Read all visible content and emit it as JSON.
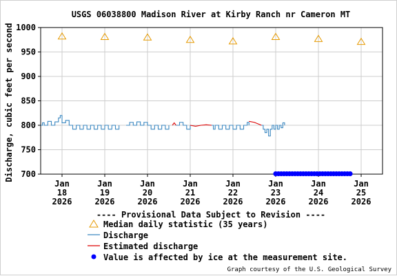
{
  "chart_data": {
    "type": "line",
    "title": "USGS 06038800 Madison River at Kirby Ranch nr Cameron MT",
    "ylabel": "Discharge, cubic feet per second",
    "ylim": [
      700,
      1000
    ],
    "yticks": [
      700,
      750,
      800,
      850,
      900,
      950,
      1000
    ],
    "x_range": [
      "2026-01-17T12:00",
      "2026-01-25T12:00"
    ],
    "xticks": [
      {
        "day": "Jan",
        "date": "18",
        "year": "2026"
      },
      {
        "day": "Jan",
        "date": "19",
        "year": "2026"
      },
      {
        "day": "Jan",
        "date": "20",
        "year": "2026"
      },
      {
        "day": "Jan",
        "date": "21",
        "year": "2026"
      },
      {
        "day": "Jan",
        "date": "22",
        "year": "2026"
      },
      {
        "day": "Jan",
        "date": "23",
        "year": "2026"
      },
      {
        "day": "Jan",
        "date": "24",
        "year": "2026"
      },
      {
        "day": "Jan",
        "date": "25",
        "year": "2026"
      }
    ],
    "grid": true,
    "provisional_notice": "---- Provisional Data Subject to Revision ----",
    "credit": "Graph courtesy of the U.S. Geological Survey",
    "legend": {
      "median": "Median daily statistic (35 years)",
      "discharge": "Discharge",
      "estimated": "Estimated discharge",
      "ice": "Value is affected by ice at the measurement site."
    },
    "colors": {
      "median": "#e69a00",
      "discharge": "#3a87c0",
      "estimated": "#dd0000",
      "ice": "#0000ff",
      "notice": "#dd0000",
      "grid": "#cccccc"
    },
    "series": [
      {
        "name": "Median daily statistic (35 years)",
        "marker": "triangle",
        "points": [
          {
            "x": "2026-01-18",
            "y": 982
          },
          {
            "x": "2026-01-19",
            "y": 981
          },
          {
            "x": "2026-01-20",
            "y": 980
          },
          {
            "x": "2026-01-21",
            "y": 975
          },
          {
            "x": "2026-01-22",
            "y": 972
          },
          {
            "x": "2026-01-23",
            "y": 981
          },
          {
            "x": "2026-01-24",
            "y": 977
          },
          {
            "x": "2026-01-25",
            "y": 971
          }
        ]
      },
      {
        "name": "Discharge",
        "points": [
          {
            "x": "2026-01-17T12:00",
            "y": 800
          },
          {
            "x": "2026-01-17T13:00",
            "y": 805
          },
          {
            "x": "2026-01-17T14:00",
            "y": 800
          },
          {
            "x": "2026-01-17T16:00",
            "y": 808
          },
          {
            "x": "2026-01-17T18:00",
            "y": 800
          },
          {
            "x": "2026-01-17T20:00",
            "y": 807
          },
          {
            "x": "2026-01-17T22:00",
            "y": 815
          },
          {
            "x": "2026-01-17T23:00",
            "y": 820
          },
          {
            "x": "2026-01-18T00:00",
            "y": 805
          },
          {
            "x": "2026-01-18T02:00",
            "y": 810
          },
          {
            "x": "2026-01-18T04:00",
            "y": 800
          },
          {
            "x": "2026-01-18T06:00",
            "y": 792
          },
          {
            "x": "2026-01-18T08:00",
            "y": 800
          },
          {
            "x": "2026-01-18T10:00",
            "y": 792
          },
          {
            "x": "2026-01-18T12:00",
            "y": 800
          },
          {
            "x": "2026-01-18T14:00",
            "y": 792
          },
          {
            "x": "2026-01-18T16:00",
            "y": 800
          },
          {
            "x": "2026-01-18T18:00",
            "y": 792
          },
          {
            "x": "2026-01-18T20:00",
            "y": 800
          },
          {
            "x": "2026-01-18T22:00",
            "y": 792
          },
          {
            "x": "2026-01-19T00:00",
            "y": 800
          },
          {
            "x": "2026-01-19T02:00",
            "y": 792
          },
          {
            "x": "2026-01-19T04:00",
            "y": 800
          },
          {
            "x": "2026-01-19T06:00",
            "y": 792
          },
          {
            "x": "2026-01-19T08:00",
            "y": 800
          },
          {
            "x": "2026-01-19T12:00",
            "y": 800
          },
          {
            "x": "2026-01-19T14:00",
            "y": 806
          },
          {
            "x": "2026-01-19T16:00",
            "y": 800
          },
          {
            "x": "2026-01-19T18:00",
            "y": 807
          },
          {
            "x": "2026-01-19T20:00",
            "y": 800
          },
          {
            "x": "2026-01-19T22:00",
            "y": 806
          },
          {
            "x": "2026-01-20T00:00",
            "y": 800
          },
          {
            "x": "2026-01-20T02:00",
            "y": 792
          },
          {
            "x": "2026-01-20T04:00",
            "y": 800
          },
          {
            "x": "2026-01-20T06:00",
            "y": 792
          },
          {
            "x": "2026-01-20T08:00",
            "y": 800
          },
          {
            "x": "2026-01-20T10:00",
            "y": 792
          },
          {
            "x": "2026-01-20T12:00",
            "y": 800
          },
          {
            "x": "2026-01-20T16:00",
            "y": 800
          },
          {
            "x": "2026-01-20T18:00",
            "y": 806
          },
          {
            "x": "2026-01-20T20:00",
            "y": 800
          },
          {
            "x": "2026-01-20T22:00",
            "y": 792
          },
          {
            "x": "2026-01-21T00:00",
            "y": 800
          },
          {
            "x": "2026-01-21T12:00",
            "y": 800
          },
          {
            "x": "2026-01-21T13:00",
            "y": 792
          },
          {
            "x": "2026-01-21T14:00",
            "y": 800
          },
          {
            "x": "2026-01-21T16:00",
            "y": 792
          },
          {
            "x": "2026-01-21T18:00",
            "y": 800
          },
          {
            "x": "2026-01-21T20:00",
            "y": 792
          },
          {
            "x": "2026-01-21T22:00",
            "y": 800
          },
          {
            "x": "2026-01-22T00:00",
            "y": 792
          },
          {
            "x": "2026-01-22T02:00",
            "y": 800
          },
          {
            "x": "2026-01-22T04:00",
            "y": 792
          },
          {
            "x": "2026-01-22T06:00",
            "y": 800
          },
          {
            "x": "2026-01-22T08:00",
            "y": 806
          },
          {
            "x": "2026-01-22T09:00",
            "y": 800
          },
          {
            "x": "2026-01-22T16:00",
            "y": 800
          },
          {
            "x": "2026-01-22T17:00",
            "y": 792
          },
          {
            "x": "2026-01-22T18:00",
            "y": 785
          },
          {
            "x": "2026-01-22T19:00",
            "y": 792
          },
          {
            "x": "2026-01-22T20:00",
            "y": 778
          },
          {
            "x": "2026-01-22T21:00",
            "y": 792
          },
          {
            "x": "2026-01-22T22:00",
            "y": 800
          },
          {
            "x": "2026-01-22T23:00",
            "y": 792
          },
          {
            "x": "2026-01-23T00:00",
            "y": 800
          },
          {
            "x": "2026-01-23T01:00",
            "y": 792
          },
          {
            "x": "2026-01-23T02:00",
            "y": 800
          },
          {
            "x": "2026-01-23T03:00",
            "y": 795
          },
          {
            "x": "2026-01-23T04:00",
            "y": 805
          },
          {
            "x": "2026-01-23T05:00",
            "y": 800
          }
        ]
      },
      {
        "name": "Estimated discharge",
        "segments": [
          [
            {
              "x": "2026-01-20T14:00",
              "y": 800
            },
            {
              "x": "2026-01-20T15:00",
              "y": 805
            },
            {
              "x": "2026-01-20T16:00",
              "y": 800
            }
          ],
          [
            {
              "x": "2026-01-21T00:00",
              "y": 800
            },
            {
              "x": "2026-01-21T03:00",
              "y": 798
            },
            {
              "x": "2026-01-21T06:00",
              "y": 800
            },
            {
              "x": "2026-01-21T09:00",
              "y": 801
            },
            {
              "x": "2026-01-21T12:00",
              "y": 800
            }
          ],
          [
            {
              "x": "2026-01-22T09:00",
              "y": 808
            },
            {
              "x": "2026-01-22T12:00",
              "y": 806
            },
            {
              "x": "2026-01-22T14:00",
              "y": 803
            },
            {
              "x": "2026-01-22T16:00",
              "y": 800
            }
          ]
        ]
      },
      {
        "name": "Value is affected by ice at the measurement site.",
        "marker": "dot",
        "y": 705,
        "x_start": "2026-01-23T00:00",
        "x_end": "2026-01-24T18:00"
      }
    ]
  }
}
